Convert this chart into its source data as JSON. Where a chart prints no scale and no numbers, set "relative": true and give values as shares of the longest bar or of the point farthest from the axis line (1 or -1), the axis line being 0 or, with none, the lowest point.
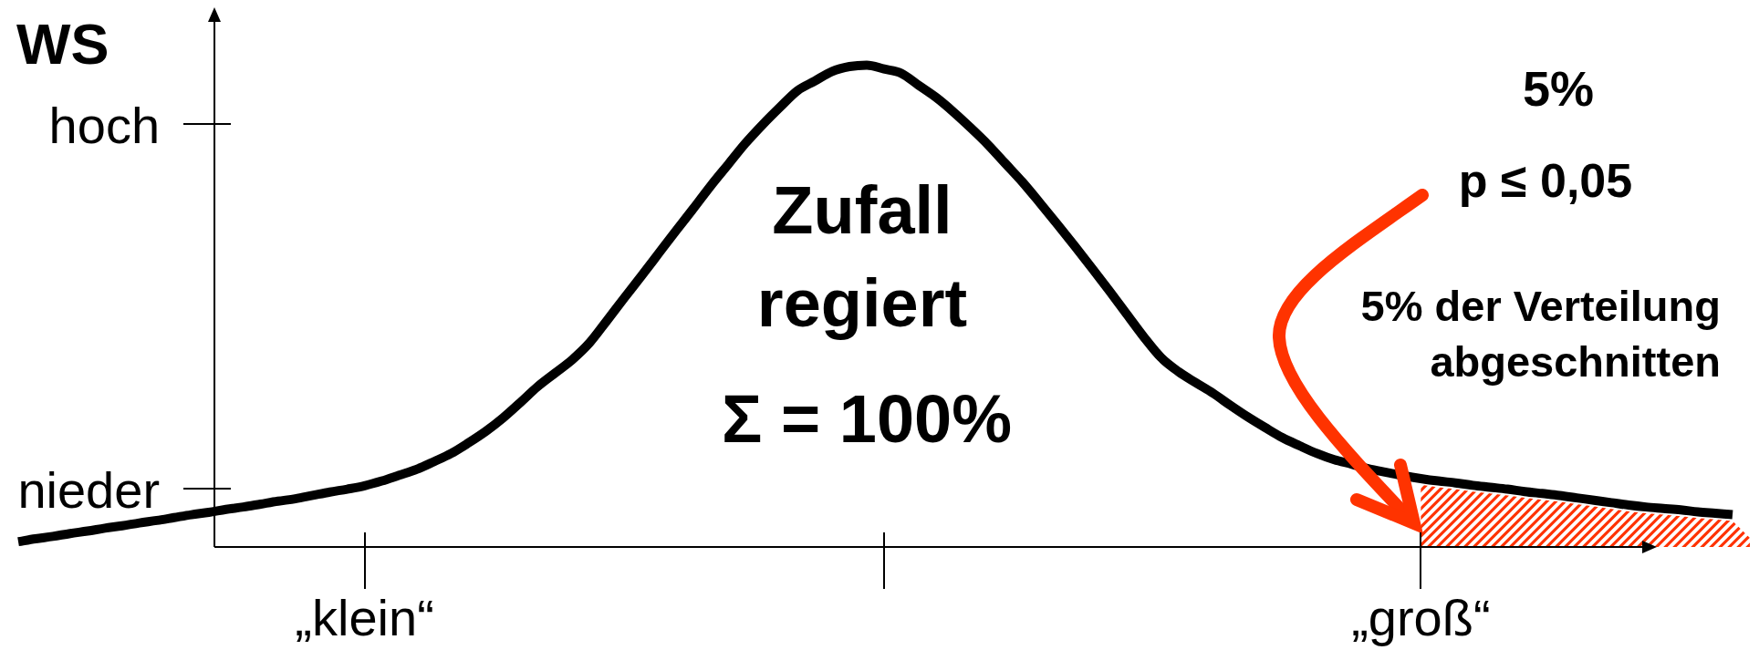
{
  "chart_data": {
    "type": "line",
    "ylabel": "WS",
    "relative": true,
    "categories": [
      null,
      null,
      null,
      null,
      null,
      null,
      null,
      null,
      null,
      null,
      null,
      null,
      null,
      null,
      null,
      null,
      null,
      null,
      null,
      null,
      "„klein“",
      null,
      null,
      null,
      null,
      null,
      null,
      null,
      null,
      null,
      null,
      null,
      null,
      null,
      null,
      null,
      null,
      null,
      null,
      null,
      null,
      null,
      null,
      null,
      null,
      null,
      null,
      null,
      null,
      null,
      null,
      null,
      null,
      null,
      null,
      null,
      null,
      null,
      null,
      null,
      null,
      null,
      null,
      null,
      null,
      null,
      null,
      null,
      null,
      null,
      null,
      null,
      null,
      null,
      null,
      null,
      null,
      null,
      null,
      null,
      null,
      "„groß“",
      null,
      null,
      null,
      null,
      null,
      null,
      null,
      null,
      null,
      null,
      null,
      null,
      null,
      null,
      null,
      null,
      null,
      null,
      null
    ],
    "marker": "none",
    "annotations": [
      "hoch",
      "nieder",
      "Zufall regiert",
      "Σ = 100%",
      "5%",
      "p ≤ 0,05",
      "5% der Verteilung abgeschnitten"
    ],
    "series": [
      {
        "color": "#000000",
        "values": [
          0.011,
          0.017,
          0.022,
          0.028,
          0.033,
          0.039,
          0.044,
          0.05,
          0.055,
          0.061,
          0.067,
          0.072,
          0.078,
          0.083,
          0.089,
          0.095,
          0.1,
          0.107,
          0.114,
          0.12,
          0.127,
          0.137,
          0.149,
          0.161,
          0.177,
          0.194,
          0.216,
          0.24,
          0.268,
          0.3,
          0.333,
          0.361,
          0.389,
          0.424,
          0.47,
          0.517,
          0.563,
          0.61,
          0.657,
          0.703,
          0.75,
          0.794,
          0.838,
          0.877,
          0.913,
          0.947,
          0.967,
          0.987,
          0.997,
          1.0,
          0.992,
          0.983,
          0.958,
          0.933,
          0.903,
          0.87,
          0.835,
          0.796,
          0.757,
          0.714,
          0.67,
          0.625,
          0.579,
          0.532,
          0.484,
          0.436,
          0.393,
          0.364,
          0.341,
          0.319,
          0.294,
          0.27,
          0.248,
          0.227,
          0.21,
          0.194,
          0.181,
          0.172,
          0.162,
          0.155,
          0.148,
          0.142,
          0.137,
          0.133,
          0.128,
          0.124,
          0.12,
          0.115,
          0.111,
          0.107,
          0.102,
          0.097,
          0.092,
          0.087,
          0.083,
          0.08,
          0.077,
          0.073,
          0.07,
          0.067,
          null
        ]
      },
      {
        "type": "area",
        "color": "#ff3300",
        "values": [
          null,
          null,
          null,
          null,
          null,
          null,
          null,
          null,
          null,
          null,
          null,
          null,
          null,
          null,
          null,
          null,
          null,
          null,
          null,
          null,
          null,
          null,
          null,
          null,
          null,
          null,
          null,
          null,
          null,
          null,
          null,
          null,
          null,
          null,
          null,
          null,
          null,
          null,
          null,
          null,
          null,
          null,
          null,
          null,
          null,
          null,
          null,
          null,
          null,
          null,
          null,
          null,
          null,
          null,
          null,
          null,
          null,
          null,
          null,
          null,
          null,
          null,
          null,
          null,
          null,
          null,
          null,
          null,
          null,
          null,
          null,
          null,
          null,
          null,
          null,
          null,
          null,
          null,
          null,
          null,
          null,
          0.129,
          0.124,
          0.12,
          0.115,
          0.111,
          0.107,
          0.102,
          0.098,
          0.094,
          0.089,
          0.084,
          0.079,
          0.074,
          0.07,
          0.067,
          0.064,
          0.06,
          0.057,
          0.054,
          0.019
        ]
      }
    ]
  }
}
